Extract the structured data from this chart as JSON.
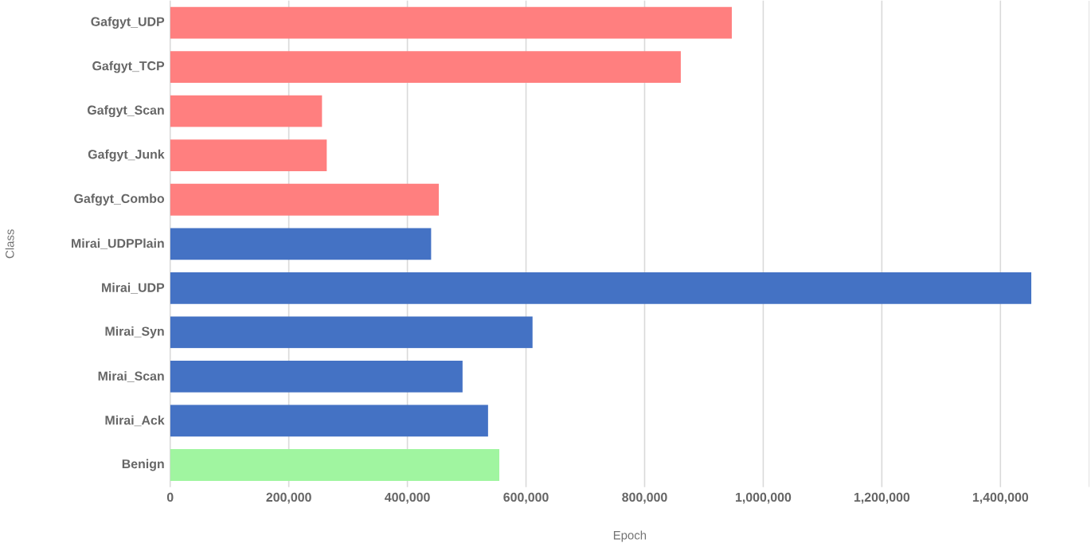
{
  "chart_data": {
    "type": "bar",
    "orientation": "horizontal",
    "xlabel": "Epoch",
    "ylabel": "Class",
    "categories": [
      "Gafgyt_UDP",
      "Gafgyt_TCP",
      "Gafgyt_Scan",
      "Gafgyt_Junk",
      "Gafgyt_Combo",
      "Mirai_UDPPlain",
      "Mirai_UDP",
      "Mirai_Syn",
      "Mirai_Scan",
      "Mirai_Ack",
      "Benign"
    ],
    "values": [
      947000,
      861000,
      256000,
      264000,
      453000,
      440000,
      1452000,
      611000,
      493000,
      536000,
      555000
    ],
    "colors": [
      "#ff7f7f",
      "#ff7f7f",
      "#ff7f7f",
      "#ff7f7f",
      "#ff7f7f",
      "#4472c4",
      "#4472c4",
      "#4472c4",
      "#4472c4",
      "#4472c4",
      "#a0f5a0"
    ],
    "xlim": [
      0,
      1550000
    ],
    "xticks": [
      {
        "value": 0,
        "label": "0"
      },
      {
        "value": 200000,
        "label": "200,000"
      },
      {
        "value": 400000,
        "label": "400,000"
      },
      {
        "value": 600000,
        "label": "600,000"
      },
      {
        "value": 800000,
        "label": "800,000"
      },
      {
        "value": 1000000,
        "label": "1,000,000"
      },
      {
        "value": 1200000,
        "label": "1,200,000"
      },
      {
        "value": 1400000,
        "label": "1,400,000"
      }
    ],
    "grid": "x"
  }
}
